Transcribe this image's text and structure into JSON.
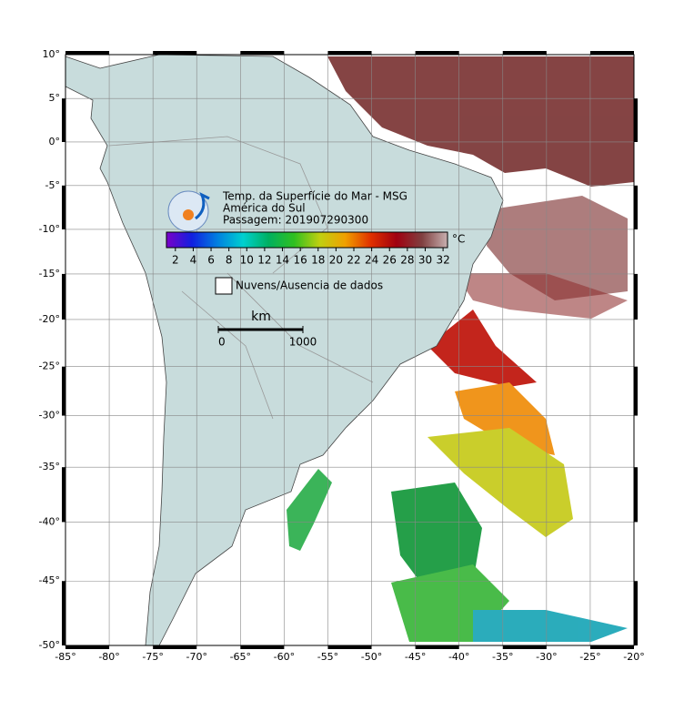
{
  "map": {
    "title_lines": [
      "Temp. da Superfície do Mar - MSG",
      "América do Sul",
      "Passagem: 201907290300"
    ],
    "projection": "mercator",
    "xlim": [
      -85,
      -20
    ],
    "ylim": [
      -50,
      10
    ],
    "xticks": [
      {
        "value": -85,
        "label": "-85°"
      },
      {
        "value": -80,
        "label": "-80°"
      },
      {
        "value": -75,
        "label": "-75°"
      },
      {
        "value": -70,
        "label": "-70°"
      },
      {
        "value": -65,
        "label": "-65°"
      },
      {
        "value": -60,
        "label": "-60°"
      },
      {
        "value": -55,
        "label": "-55°"
      },
      {
        "value": -50,
        "label": "-50°"
      },
      {
        "value": -45,
        "label": "-45°"
      },
      {
        "value": -40,
        "label": "-40°"
      },
      {
        "value": -35,
        "label": "-35°"
      },
      {
        "value": -30,
        "label": "-30°"
      },
      {
        "value": -25,
        "label": "-25°"
      },
      {
        "value": -20,
        "label": "-20°"
      }
    ],
    "yticks": [
      {
        "value": 10,
        "label": "10°"
      },
      {
        "value": 5,
        "label": "5°"
      },
      {
        "value": 0,
        "label": "0°"
      },
      {
        "value": -5,
        "label": "-5°"
      },
      {
        "value": -10,
        "label": "-10°"
      },
      {
        "value": -15,
        "label": "-15°"
      },
      {
        "value": -20,
        "label": "-20°"
      },
      {
        "value": -25,
        "label": "-25°"
      },
      {
        "value": -30,
        "label": "-30°"
      },
      {
        "value": -35,
        "label": "-35°"
      },
      {
        "value": -40,
        "label": "-40°"
      },
      {
        "value": -45,
        "label": "-45°"
      },
      {
        "value": -50,
        "label": "-50°"
      }
    ],
    "grid": true,
    "colorbar": {
      "unit": "°C",
      "lim": [
        1,
        32.5
      ],
      "ticks": [
        2,
        4,
        6,
        8,
        10,
        12,
        14,
        16,
        18,
        20,
        22,
        24,
        26,
        28,
        30,
        32
      ],
      "colors": [
        "#7a00c8",
        "#1020e0",
        "#0080e0",
        "#00d0d0",
        "#00b060",
        "#30c020",
        "#c0d010",
        "#f0a000",
        "#e03000",
        "#a00010",
        "#804040",
        "#c8b0b0"
      ]
    },
    "legend_label": "Nuvens/Ausencia de dados",
    "scale_bar": {
      "unit": "km",
      "ticks": [
        0,
        1000
      ]
    }
  }
}
